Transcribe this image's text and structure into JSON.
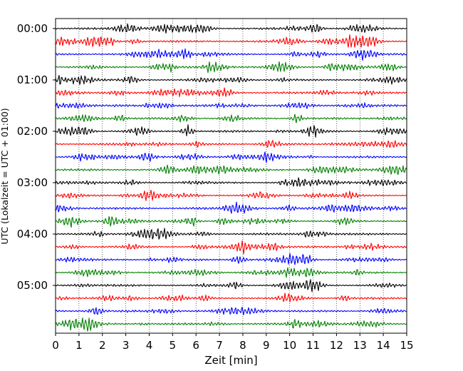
{
  "chart_data": {
    "type": "line",
    "title": "",
    "xlabel": "Zeit  [min]",
    "ylabel": "UTC (Lokalzeit = UTC + 01:00)",
    "xlim": [
      0,
      15
    ],
    "x_ticks": [
      0,
      1,
      2,
      3,
      4,
      5,
      6,
      7,
      8,
      9,
      10,
      11,
      12,
      13,
      14,
      15
    ],
    "x_tick_labels": [
      "0",
      "1",
      "2",
      "3",
      "4",
      "5",
      "6",
      "7",
      "8",
      "9",
      "10",
      "11",
      "12",
      "13",
      "14",
      "15"
    ],
    "y_tick_labels": [
      "00:00",
      "01:00",
      "02:00",
      "03:00",
      "04:00",
      "05:00"
    ],
    "traces_per_hour": 4,
    "trace_count": 24,
    "trace_colors": [
      "#000000",
      "#ff0000",
      "#0000ff",
      "#008000"
    ],
    "grid": "vertical dotted at each minute",
    "legend": "none"
  }
}
